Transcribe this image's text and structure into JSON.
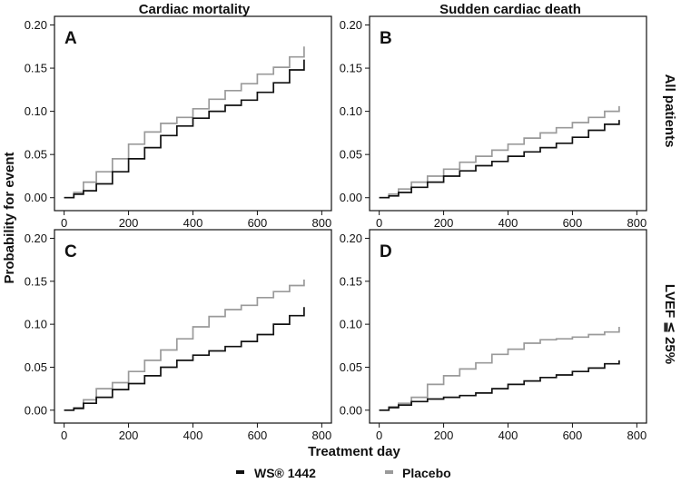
{
  "figure": {
    "column_titles": [
      "Cardiac mortality",
      "Sudden cardiac death"
    ],
    "row_labels": [
      "All patients",
      "LVEF ≦ 25%"
    ],
    "ylabel": "Probability for event",
    "xlabel": "Treatment day",
    "legend": {
      "items": [
        {
          "label": "WS® 1442",
          "color": "#111111"
        },
        {
          "label": "Placebo",
          "color": "#9a9a9a"
        }
      ]
    }
  },
  "chart_data": [
    {
      "type": "line",
      "panel": "A",
      "xlim": [
        -30,
        830
      ],
      "ylim": [
        -0.015,
        0.21
      ],
      "xticks": [
        0,
        200,
        400,
        600,
        800
      ],
      "yticks": [
        0.0,
        0.05,
        0.1,
        0.15,
        0.2
      ],
      "ytick_labels": [
        "0.00",
        "0.05",
        "0.10",
        "0.15",
        "0.20"
      ],
      "series": [
        {
          "name": "WS® 1442",
          "color": "#111111",
          "x": [
            0,
            30,
            60,
            100,
            150,
            200,
            250,
            300,
            350,
            400,
            450,
            500,
            550,
            600,
            650,
            700,
            745
          ],
          "y": [
            0.0,
            0.004,
            0.008,
            0.016,
            0.03,
            0.045,
            0.058,
            0.072,
            0.083,
            0.092,
            0.1,
            0.107,
            0.113,
            0.122,
            0.133,
            0.148,
            0.16
          ]
        },
        {
          "name": "Placebo",
          "color": "#9a9a9a",
          "x": [
            0,
            30,
            60,
            100,
            150,
            200,
            250,
            300,
            350,
            400,
            450,
            500,
            550,
            600,
            650,
            700,
            745
          ],
          "y": [
            0.0,
            0.006,
            0.018,
            0.03,
            0.045,
            0.062,
            0.076,
            0.086,
            0.093,
            0.103,
            0.114,
            0.124,
            0.132,
            0.143,
            0.151,
            0.163,
            0.175
          ]
        }
      ]
    },
    {
      "type": "line",
      "panel": "B",
      "xlim": [
        -30,
        830
      ],
      "ylim": [
        -0.015,
        0.21
      ],
      "xticks": [
        0,
        200,
        400,
        600,
        800
      ],
      "yticks": [
        0.0,
        0.05,
        0.1,
        0.15,
        0.2
      ],
      "ytick_labels": [
        "0.00",
        "0.05",
        "0.10",
        "0.15",
        "0.20"
      ],
      "series": [
        {
          "name": "WS® 1442",
          "color": "#111111",
          "x": [
            0,
            30,
            60,
            100,
            150,
            200,
            250,
            300,
            350,
            400,
            450,
            500,
            550,
            600,
            650,
            700,
            745
          ],
          "y": [
            0.0,
            0.002,
            0.006,
            0.012,
            0.018,
            0.025,
            0.031,
            0.037,
            0.042,
            0.048,
            0.053,
            0.058,
            0.063,
            0.07,
            0.078,
            0.085,
            0.09
          ]
        },
        {
          "name": "Placebo",
          "color": "#9a9a9a",
          "x": [
            0,
            30,
            60,
            100,
            150,
            200,
            250,
            300,
            350,
            400,
            450,
            500,
            550,
            600,
            650,
            700,
            745
          ],
          "y": [
            0.0,
            0.004,
            0.01,
            0.018,
            0.025,
            0.033,
            0.041,
            0.048,
            0.055,
            0.062,
            0.069,
            0.075,
            0.081,
            0.087,
            0.093,
            0.1,
            0.106
          ]
        }
      ]
    },
    {
      "type": "line",
      "panel": "C",
      "xlim": [
        -30,
        830
      ],
      "ylim": [
        -0.015,
        0.21
      ],
      "xticks": [
        0,
        200,
        400,
        600,
        800
      ],
      "yticks": [
        0.0,
        0.05,
        0.1,
        0.15,
        0.2
      ],
      "ytick_labels": [
        "0.00",
        "0.05",
        "0.10",
        "0.15",
        "0.20"
      ],
      "series": [
        {
          "name": "WS® 1442",
          "color": "#111111",
          "x": [
            0,
            30,
            60,
            100,
            150,
            200,
            250,
            300,
            350,
            400,
            450,
            500,
            550,
            600,
            650,
            700,
            745
          ],
          "y": [
            0.0,
            0.002,
            0.008,
            0.015,
            0.024,
            0.031,
            0.04,
            0.05,
            0.058,
            0.064,
            0.069,
            0.074,
            0.08,
            0.088,
            0.1,
            0.11,
            0.12
          ]
        },
        {
          "name": "Placebo",
          "color": "#9a9a9a",
          "x": [
            0,
            30,
            60,
            100,
            150,
            200,
            250,
            300,
            350,
            400,
            450,
            500,
            550,
            600,
            650,
            700,
            745
          ],
          "y": [
            0.0,
            0.003,
            0.012,
            0.025,
            0.032,
            0.045,
            0.058,
            0.07,
            0.083,
            0.097,
            0.109,
            0.117,
            0.122,
            0.131,
            0.138,
            0.145,
            0.152
          ]
        }
      ]
    },
    {
      "type": "line",
      "panel": "D",
      "xlim": [
        -30,
        830
      ],
      "ylim": [
        -0.015,
        0.21
      ],
      "xticks": [
        0,
        200,
        400,
        600,
        800
      ],
      "yticks": [
        0.0,
        0.05,
        0.1,
        0.15,
        0.2
      ],
      "ytick_labels": [
        "0.00",
        "0.05",
        "0.10",
        "0.15",
        "0.20"
      ],
      "series": [
        {
          "name": "WS® 1442",
          "color": "#111111",
          "x": [
            0,
            30,
            60,
            100,
            150,
            200,
            250,
            300,
            350,
            400,
            450,
            500,
            550,
            600,
            650,
            700,
            745
          ],
          "y": [
            0.0,
            0.003,
            0.006,
            0.01,
            0.013,
            0.015,
            0.017,
            0.02,
            0.025,
            0.03,
            0.034,
            0.038,
            0.041,
            0.045,
            0.049,
            0.054,
            0.058
          ]
        },
        {
          "name": "Placebo",
          "color": "#9a9a9a",
          "x": [
            0,
            30,
            60,
            100,
            150,
            200,
            250,
            300,
            350,
            400,
            450,
            500,
            550,
            600,
            650,
            700,
            745
          ],
          "y": [
            0.0,
            0.004,
            0.008,
            0.015,
            0.03,
            0.04,
            0.048,
            0.055,
            0.065,
            0.071,
            0.078,
            0.082,
            0.083,
            0.085,
            0.088,
            0.091,
            0.097
          ]
        }
      ]
    }
  ]
}
